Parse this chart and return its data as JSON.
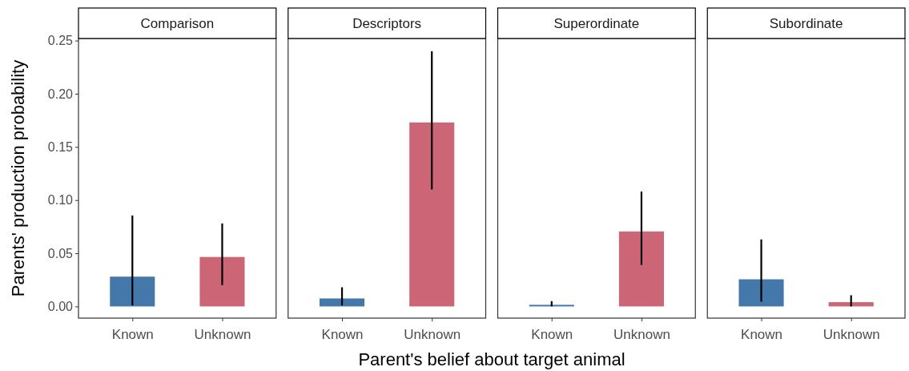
{
  "chart_data": [
    {
      "type": "bar",
      "title": "Comparison",
      "xlabel": "Parent's belief about target animal",
      "ylabel": "Parents' production probability",
      "categories": [
        "Known",
        "Unknown"
      ],
      "values": [
        0.028,
        0.0465
      ],
      "colors": [
        "#4477aa",
        "#cc6677"
      ],
      "errors": [
        [
          0.001,
          0.0855
        ],
        [
          0.02,
          0.078
        ]
      ],
      "ylim": [
        -0.011,
        0.252
      ],
      "yticks": [
        {
          "value": 0,
          "label": "0.00"
        },
        {
          "value": 0.05,
          "label": "0.05"
        },
        {
          "value": 0.1,
          "label": "0.10"
        },
        {
          "value": 0.15,
          "label": "0.15"
        },
        {
          "value": 0.2,
          "label": "0.20"
        },
        {
          "value": 0.25,
          "label": "0.25"
        }
      ],
      "grid": false
    },
    {
      "type": "bar",
      "title": "Descriptors",
      "categories": [
        "Known",
        "Unknown"
      ],
      "values": [
        0.0075,
        0.173
      ],
      "colors": [
        "#4477aa",
        "#cc6677"
      ],
      "errors": [
        [
          0.001,
          0.018
        ],
        [
          0.11,
          0.24
        ]
      ],
      "ylim": [
        -0.011,
        0.252
      ],
      "tick_labels": "x",
      "grid": false
    },
    {
      "type": "bar",
      "title": "Superordinate",
      "categories": [
        "Known",
        "Unknown"
      ],
      "values": [
        0.0015,
        0.0705
      ],
      "colors": [
        "#4477aa",
        "#cc6677"
      ],
      "errors": [
        [
          0,
          0.005
        ],
        [
          0.039,
          0.108
        ]
      ],
      "ylim": [
        -0.011,
        0.252
      ],
      "tick_labels": "x",
      "grid": false
    },
    {
      "type": "bar",
      "title": "Subordinate",
      "categories": [
        "Known",
        "Unknown"
      ],
      "values": [
        0.0255,
        0.004
      ],
      "colors": [
        "#4477aa",
        "#cc6677"
      ],
      "errors": [
        [
          0.0045,
          0.063
        ],
        [
          0,
          0.0105
        ]
      ],
      "ylim": [
        -0.011,
        0.252
      ],
      "tick_labels": "x",
      "grid": false
    }
  ]
}
